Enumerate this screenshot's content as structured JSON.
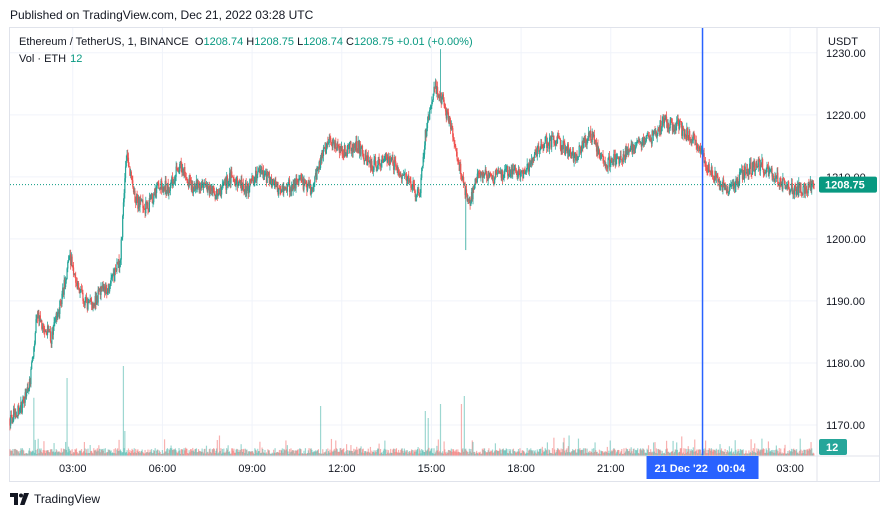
{
  "published": "Published on TradingView.com, Dec 21, 2022 03:28 UTC",
  "footer_brand": "TradingView",
  "legend": {
    "symbol": "Ethereum / TetherUS, 1, BINANCE",
    "o_label": "O",
    "o_value": "1208.74",
    "h_label": "H",
    "h_value": "1208.75",
    "l_label": "L",
    "l_value": "1208.74",
    "c_label": "C",
    "c_value": "1208.75",
    "change": "+0.01 (+0.00%)",
    "vol_label": "Vol · ETH",
    "vol_value": "12"
  },
  "colors": {
    "up": "#26a69a",
    "down": "#ef5350",
    "crosshair": "#2962ff",
    "price_line": "#089981"
  },
  "chart_data": {
    "type": "candlestick",
    "currency": "USDT",
    "y_ticks": [
      "1230.00",
      "1220.00",
      "1210.00",
      "1200.00",
      "1190.00",
      "1180.00",
      "1170.00"
    ],
    "y_tick_values": [
      1230,
      1220,
      1210,
      1200,
      1190,
      1180,
      1170
    ],
    "ylim": [
      1165,
      1234
    ],
    "x_ticks": [
      "03:00",
      "06:00",
      "09:00",
      "12:00",
      "15:00",
      "18:00",
      "21:00",
      "03:00"
    ],
    "x_tick_hours": [
      3,
      6,
      9,
      12,
      15,
      18,
      21,
      27
    ],
    "xlim_hours": [
      0.9,
      27.9
    ],
    "crosshair_label": "21 Dec '22   00:04",
    "crosshair_hour": 24.07,
    "last_price_label": "1208.75",
    "last_price": 1208.75,
    "last_volume_label": "12",
    "price_path": [
      [
        0.9,
        1171
      ],
      [
        1.3,
        1173
      ],
      [
        1.6,
        1178
      ],
      [
        1.8,
        1188
      ],
      [
        2.0,
        1186
      ],
      [
        2.3,
        1184
      ],
      [
        2.6,
        1190
      ],
      [
        2.9,
        1197
      ],
      [
        3.2,
        1192
      ],
      [
        3.5,
        1189
      ],
      [
        3.9,
        1191
      ],
      [
        4.3,
        1193
      ],
      [
        4.6,
        1197
      ],
      [
        4.8,
        1214
      ],
      [
        5.1,
        1206
      ],
      [
        5.5,
        1205
      ],
      [
        5.9,
        1209
      ],
      [
        6.2,
        1208
      ],
      [
        6.6,
        1212
      ],
      [
        7.0,
        1208
      ],
      [
        7.4,
        1209
      ],
      [
        7.8,
        1207
      ],
      [
        8.3,
        1210
      ],
      [
        8.8,
        1208
      ],
      [
        9.3,
        1211
      ],
      [
        9.9,
        1208
      ],
      [
        10.5,
        1209
      ],
      [
        11.0,
        1208
      ],
      [
        11.3,
        1213
      ],
      [
        11.6,
        1216
      ],
      [
        12.0,
        1214
      ],
      [
        12.5,
        1215
      ],
      [
        13.0,
        1212
      ],
      [
        13.6,
        1213
      ],
      [
        14.1,
        1210
      ],
      [
        14.6,
        1207
      ],
      [
        14.8,
        1217
      ],
      [
        15.1,
        1225
      ],
      [
        15.4,
        1222
      ],
      [
        15.8,
        1215
      ],
      [
        16.1,
        1208
      ],
      [
        16.3,
        1206
      ],
      [
        16.6,
        1211
      ],
      [
        17.1,
        1210
      ],
      [
        17.6,
        1211
      ],
      [
        18.1,
        1210
      ],
      [
        18.6,
        1215
      ],
      [
        19.2,
        1216
      ],
      [
        19.8,
        1213
      ],
      [
        20.3,
        1217
      ],
      [
        20.8,
        1212
      ],
      [
        21.3,
        1213
      ],
      [
        21.8,
        1215
      ],
      [
        22.3,
        1216
      ],
      [
        22.8,
        1219
      ],
      [
        23.3,
        1218
      ],
      [
        23.8,
        1216
      ],
      [
        24.1,
        1213
      ],
      [
        24.6,
        1209
      ],
      [
        25.0,
        1208
      ],
      [
        25.5,
        1211
      ],
      [
        26.0,
        1212
      ],
      [
        26.5,
        1210
      ],
      [
        27.0,
        1208
      ],
      [
        27.4,
        1208
      ],
      [
        27.8,
        1208.75
      ]
    ],
    "extremes": [
      {
        "hour": 15.3,
        "price": 1230.6
      },
      {
        "hour": 16.15,
        "price": 1198.2
      },
      {
        "hour": 0.9,
        "price": 1169.5
      }
    ],
    "volume_spikes": [
      {
        "hour": 1.7,
        "value": 55
      },
      {
        "hour": 2.8,
        "value": 78
      },
      {
        "hour": 4.7,
        "value": 90
      },
      {
        "hour": 4.75,
        "value": 25
      },
      {
        "hour": 11.3,
        "value": 50
      },
      {
        "hour": 14.8,
        "value": 45
      },
      {
        "hour": 14.9,
        "value": 38
      },
      {
        "hour": 15.3,
        "value": 52
      },
      {
        "hour": 16.0,
        "value": 52
      },
      {
        "hour": 16.1,
        "value": 60
      }
    ]
  }
}
